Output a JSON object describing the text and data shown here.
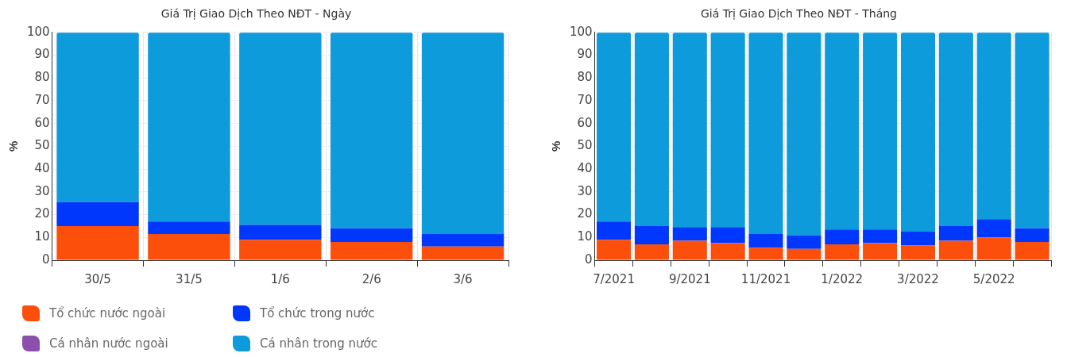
{
  "chart_data": [
    {
      "type": "bar",
      "title": "Giá Trị Giao Dịch Theo NĐT - Ngày",
      "ylabel": "%",
      "stacked": true,
      "categories": [
        "30/5",
        "31/5",
        "1/6",
        "2/6",
        "3/6"
      ],
      "series": [
        {
          "name": "Tổ chức nước ngoài",
          "color": "#fd4f0c",
          "values": [
            15,
            11.5,
            9,
            8,
            6
          ]
        },
        {
          "name": "Tổ chức trong nước",
          "color": "#0037fd",
          "values": [
            10.5,
            5.5,
            6.5,
            6,
            5.5
          ]
        },
        {
          "name": "Cá nhân nước ngoài",
          "color": "#8b4fae",
          "values": [
            null,
            null,
            null,
            null,
            null
          ]
        },
        {
          "name": "Cá nhân trong nước",
          "color": "#0e9bdc",
          "values": [
            74.3,
            82.8,
            84.3,
            85.8,
            88.3
          ]
        }
      ],
      "ylim": [
        0,
        100
      ],
      "yticks": [
        0,
        10,
        20,
        30,
        40,
        50,
        60,
        70,
        80,
        90,
        100
      ],
      "grid": true,
      "legend": "bottom"
    },
    {
      "type": "bar",
      "title": "Giá Trị Giao Dịch Theo NĐT - Tháng",
      "ylabel": "%",
      "stacked": true,
      "categories": [
        "7/2021",
        null,
        "9/2021",
        null,
        "11/2021",
        null,
        "1/2022",
        null,
        "3/2022",
        null,
        "5/2022",
        null
      ],
      "series": [
        {
          "color": "#fd4f0c",
          "values": [
            9,
            7,
            8.5,
            7.5,
            5.5,
            5,
            7,
            7.5,
            6.5,
            8.5,
            10,
            8
          ]
        },
        {
          "color": "#0037fd",
          "values": [
            8,
            8,
            6,
            7,
            6,
            6,
            6.5,
            6,
            6,
            6.5,
            8,
            6
          ]
        },
        {
          "color": "#8b4fae",
          "values": [
            null,
            null,
            null,
            null,
            null,
            null,
            null,
            null,
            null,
            null,
            null,
            null
          ]
        },
        {
          "color": "#0e9bdc",
          "values": [
            82.8,
            84.8,
            85.3,
            85.3,
            88.3,
            88.8,
            86.3,
            86.3,
            87.3,
            84.8,
            81.8,
            85.8
          ]
        }
      ],
      "ylim": [
        0,
        100
      ],
      "yticks": [
        0,
        10,
        20,
        30,
        40,
        50,
        60,
        70,
        80,
        90,
        100
      ],
      "grid": true
    }
  ]
}
